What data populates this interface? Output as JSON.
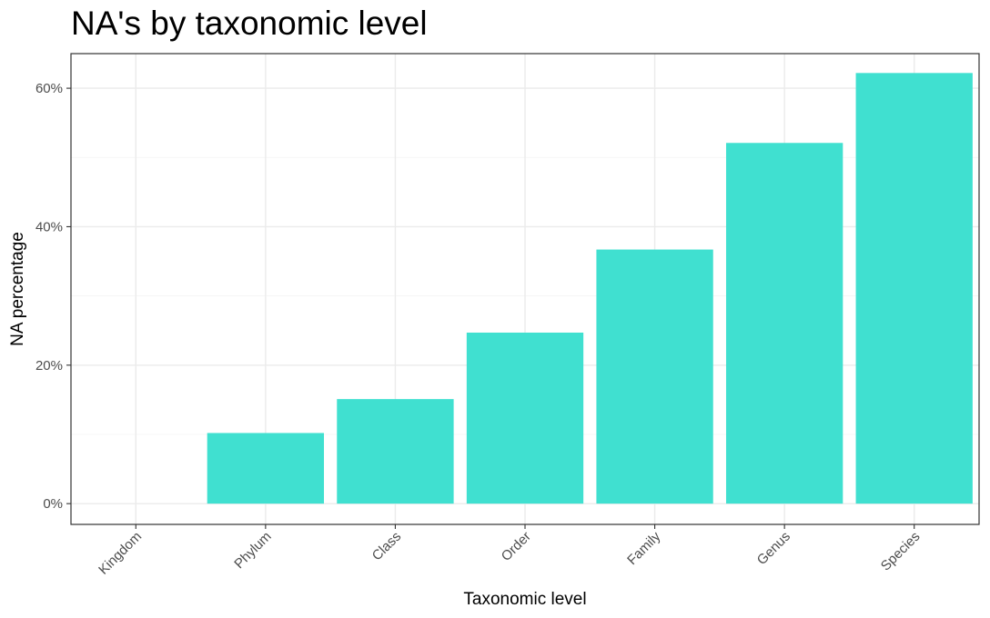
{
  "chart_data": {
    "type": "bar",
    "title": "NA's by taxonomic level",
    "xlabel": "Taxonomic level",
    "ylabel": "NA percentage",
    "categories": [
      "Kingdom",
      "Phylum",
      "Class",
      "Order",
      "Family",
      "Genus",
      "Species"
    ],
    "values": [
      0,
      10.2,
      15.1,
      24.7,
      36.7,
      52.1,
      62.2
    ],
    "value_unit": "%",
    "ylim": [
      -3,
      65
    ],
    "y_ticks": [
      0,
      20,
      40,
      60
    ],
    "y_tick_labels": [
      "0%",
      "20%",
      "40%",
      "60%"
    ],
    "grid": true,
    "bar_color": "#40E0D0"
  }
}
